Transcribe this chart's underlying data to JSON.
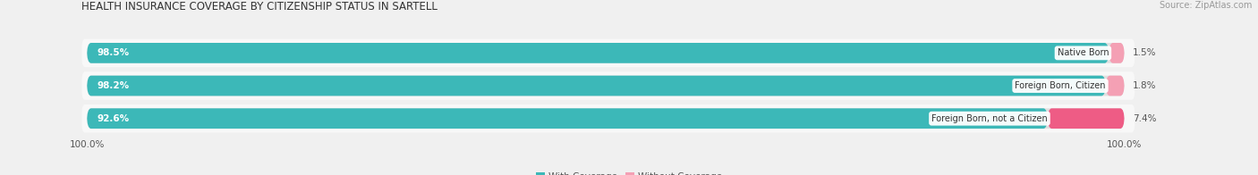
{
  "title": "HEALTH INSURANCE COVERAGE BY CITIZENSHIP STATUS IN SARTELL",
  "source": "Source: ZipAtlas.com",
  "categories": [
    "Native Born",
    "Foreign Born, Citizen",
    "Foreign Born, not a Citizen"
  ],
  "with_coverage": [
    98.5,
    98.2,
    92.6
  ],
  "without_coverage": [
    1.5,
    1.8,
    7.4
  ],
  "color_with": "#3CB8B8",
  "color_without_light": "#F4A0B4",
  "color_without_dark": "#EE5C85",
  "bg_color": "#f0f0f0",
  "bar_bg_color": "#e0e0e0",
  "row_bg_color": "#f8f8f8",
  "title_fontsize": 8.5,
  "label_fontsize": 7.5,
  "pct_fontsize": 7.5,
  "legend_fontsize": 7.5,
  "source_fontsize": 7,
  "cat_label_fontsize": 7.0
}
